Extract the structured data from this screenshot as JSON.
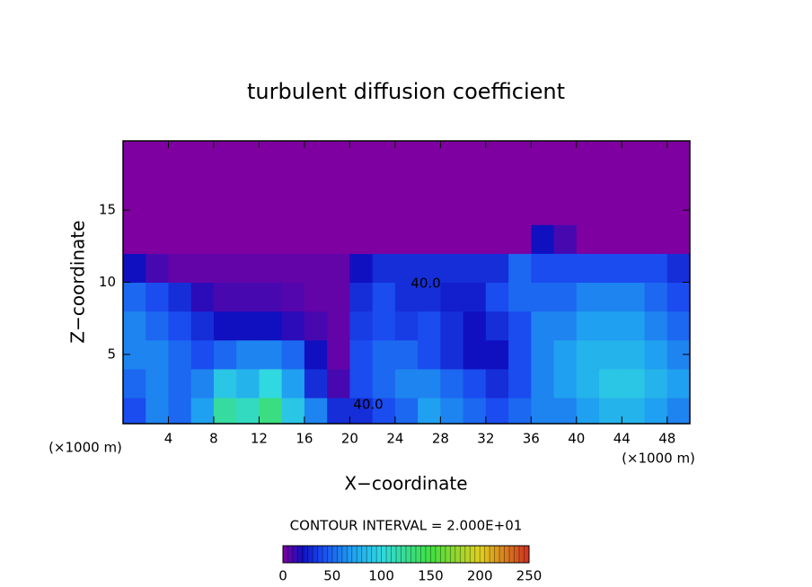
{
  "chart_data": {
    "type": "contour",
    "title": "turbulent diffusion coefficient",
    "x_label": "X−coordinate",
    "y_label": "Z−coordinate",
    "x_unit": "(×1000 m)",
    "y_unit": "(×1000 m)",
    "contour_interval": "CONTOUR INTERVAL = 2.000E+01",
    "annotations": [
      "40.0",
      "40.0"
    ],
    "xlim": [
      0,
      50
    ],
    "ylim": [
      0.2,
      19.8
    ],
    "xticks": [
      4,
      8,
      12,
      16,
      20,
      24,
      28,
      32,
      36,
      40,
      44,
      48
    ],
    "yticks": [
      5,
      10,
      15
    ],
    "x_edges": [
      0,
      2,
      4,
      6,
      8,
      10,
      12,
      14,
      16,
      18,
      20,
      22,
      24,
      26,
      28,
      30,
      32,
      34,
      36,
      38,
      40,
      42,
      44,
      46,
      48,
      50
    ],
    "y_edges": [
      0.2,
      2,
      4,
      6,
      8,
      10,
      12,
      14,
      16,
      18,
      19.8
    ],
    "z": [
      [
        40,
        60,
        50,
        70,
        120,
        110,
        130,
        90,
        60,
        30,
        30,
        40,
        50,
        70,
        60,
        50,
        40,
        50,
        60,
        60,
        70,
        80,
        80,
        70,
        60
      ],
      [
        50,
        60,
        50,
        60,
        90,
        80,
        100,
        70,
        30,
        10,
        40,
        50,
        60,
        60,
        50,
        40,
        30,
        40,
        60,
        70,
        80,
        90,
        90,
        80,
        70
      ],
      [
        60,
        60,
        50,
        40,
        50,
        60,
        60,
        50,
        20,
        5,
        40,
        50,
        50,
        40,
        30,
        20,
        20,
        40,
        60,
        70,
        80,
        80,
        80,
        70,
        60
      ],
      [
        60,
        50,
        40,
        30,
        20,
        20,
        20,
        15,
        10,
        5,
        35,
        40,
        35,
        40,
        30,
        20,
        30,
        40,
        60,
        60,
        70,
        70,
        70,
        60,
        50
      ],
      [
        50,
        40,
        30,
        15,
        10,
        10,
        10,
        8,
        5,
        5,
        30,
        40,
        30,
        30,
        25,
        25,
        40,
        50,
        50,
        50,
        60,
        60,
        60,
        50,
        40
      ],
      [
        20,
        10,
        5,
        5,
        5,
        5,
        5,
        5,
        5,
        5,
        20,
        30,
        30,
        30,
        30,
        30,
        30,
        50,
        40,
        40,
        40,
        40,
        40,
        40,
        30
      ],
      [
        0,
        0,
        0,
        0,
        0,
        0,
        0,
        0,
        0,
        0,
        0,
        0,
        0,
        0,
        0,
        0,
        0,
        0,
        20,
        10,
        0,
        0,
        0,
        0,
        0
      ],
      [
        0,
        0,
        0,
        0,
        0,
        0,
        0,
        0,
        0,
        0,
        0,
        0,
        0,
        0,
        0,
        0,
        0,
        0,
        0,
        0,
        0,
        0,
        0,
        0,
        0
      ],
      [
        0,
        0,
        0,
        0,
        0,
        0,
        0,
        0,
        0,
        0,
        0,
        0,
        0,
        0,
        0,
        0,
        0,
        0,
        0,
        0,
        0,
        0,
        0,
        0,
        0
      ],
      [
        0,
        0,
        0,
        0,
        0,
        0,
        0,
        0,
        0,
        0,
        0,
        0,
        0,
        0,
        0,
        0,
        0,
        0,
        0,
        0,
        0,
        0,
        0,
        0,
        0
      ]
    ],
    "colorscale": [
      [
        0,
        "#7f00a0"
      ],
      [
        20,
        "#1010c0"
      ],
      [
        40,
        "#1a4cf0"
      ],
      [
        70,
        "#20a0f0"
      ],
      [
        100,
        "#30d8e0"
      ],
      [
        150,
        "#40e040"
      ],
      [
        200,
        "#e0d020"
      ],
      [
        250,
        "#d03020"
      ]
    ],
    "colorbar_lim": [
      0,
      250
    ],
    "colorbar_ticks": [
      0,
      50,
      100,
      150,
      200,
      250
    ]
  }
}
